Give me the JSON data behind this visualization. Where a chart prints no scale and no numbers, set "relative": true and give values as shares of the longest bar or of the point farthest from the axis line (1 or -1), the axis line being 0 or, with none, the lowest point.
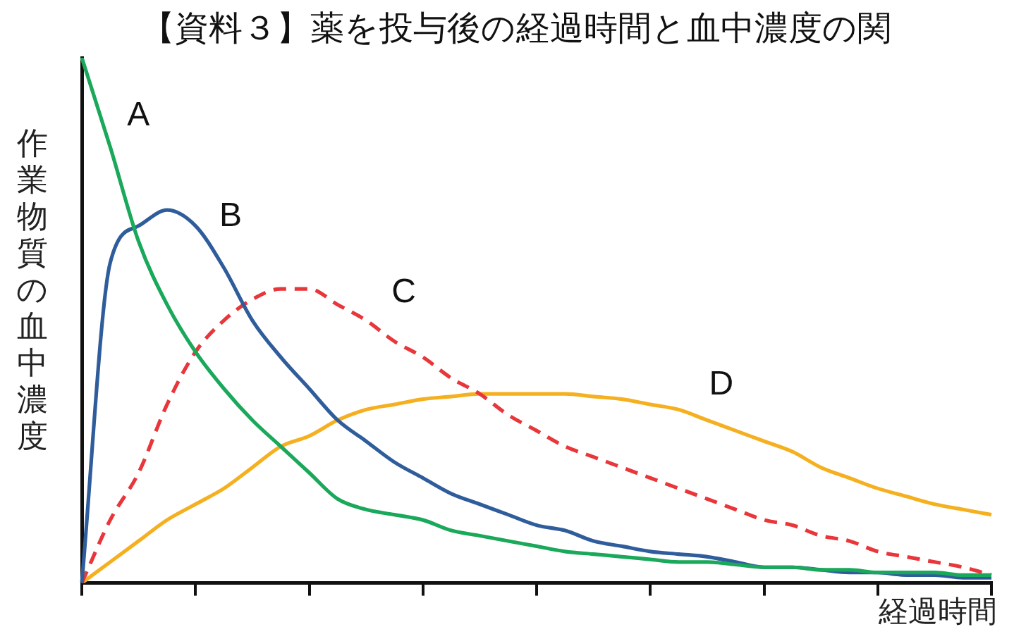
{
  "chart_data": {
    "type": "line",
    "title": "【資料３】薬を投与後の経過時間と血中濃度の関",
    "xlabel": "経過時間",
    "ylabel": "作業物質の血中濃度",
    "relative": true,
    "legend": false,
    "grid": false,
    "marker": "none",
    "line_style": "solid",
    "categories": [
      null,
      null,
      null,
      null,
      null,
      null,
      null,
      null,
      null,
      null,
      null,
      null,
      null,
      null,
      null,
      null,
      null,
      null,
      null,
      null,
      null,
      null,
      null,
      null,
      null,
      null,
      null,
      null,
      null,
      null,
      null,
      null,
      null
    ],
    "series": [
      {
        "name": "A",
        "color": "#1aa85a",
        "values": [
          1.0,
          0.83,
          0.65,
          0.53,
          0.44,
          0.37,
          0.31,
          0.26,
          0.21,
          0.16,
          0.14,
          0.13,
          0.12,
          0.1,
          0.09,
          0.08,
          0.07,
          0.06,
          0.055,
          0.05,
          0.045,
          0.04,
          0.04,
          0.035,
          0.03,
          0.03,
          0.025,
          0.025,
          0.02,
          0.02,
          0.02,
          0.015,
          0.015
        ]
      },
      {
        "name": "B",
        "color": "#2f5d9c",
        "values": [
          0,
          0.61,
          0.68,
          0.71,
          0.68,
          0.6,
          0.5,
          0.43,
          0.37,
          0.31,
          0.27,
          0.23,
          0.2,
          0.17,
          0.15,
          0.13,
          0.11,
          0.1,
          0.08,
          0.07,
          0.06,
          0.055,
          0.05,
          0.04,
          0.03,
          0.03,
          0.025,
          0.02,
          0.02,
          0.015,
          0.015,
          0.01,
          0.01
        ]
      },
      {
        "name": "C",
        "color": "#e8363a",
        "line_style": "dashed",
        "values": [
          0,
          0.12,
          0.21,
          0.34,
          0.44,
          0.5,
          0.54,
          0.56,
          0.56,
          0.53,
          0.5,
          0.46,
          0.43,
          0.39,
          0.36,
          0.32,
          0.29,
          0.26,
          0.24,
          0.22,
          0.2,
          0.18,
          0.16,
          0.14,
          0.12,
          0.11,
          0.09,
          0.08,
          0.06,
          0.05,
          0.04,
          0.03,
          0.015
        ]
      },
      {
        "name": "D",
        "color": "#f5b020",
        "values": [
          0,
          0.04,
          0.08,
          0.12,
          0.15,
          0.18,
          0.22,
          0.26,
          0.28,
          0.31,
          0.33,
          0.34,
          0.35,
          0.355,
          0.36,
          0.36,
          0.36,
          0.36,
          0.355,
          0.35,
          0.34,
          0.33,
          0.31,
          0.29,
          0.27,
          0.25,
          0.22,
          0.2,
          0.18,
          0.165,
          0.15,
          0.14,
          0.13
        ]
      }
    ]
  }
}
